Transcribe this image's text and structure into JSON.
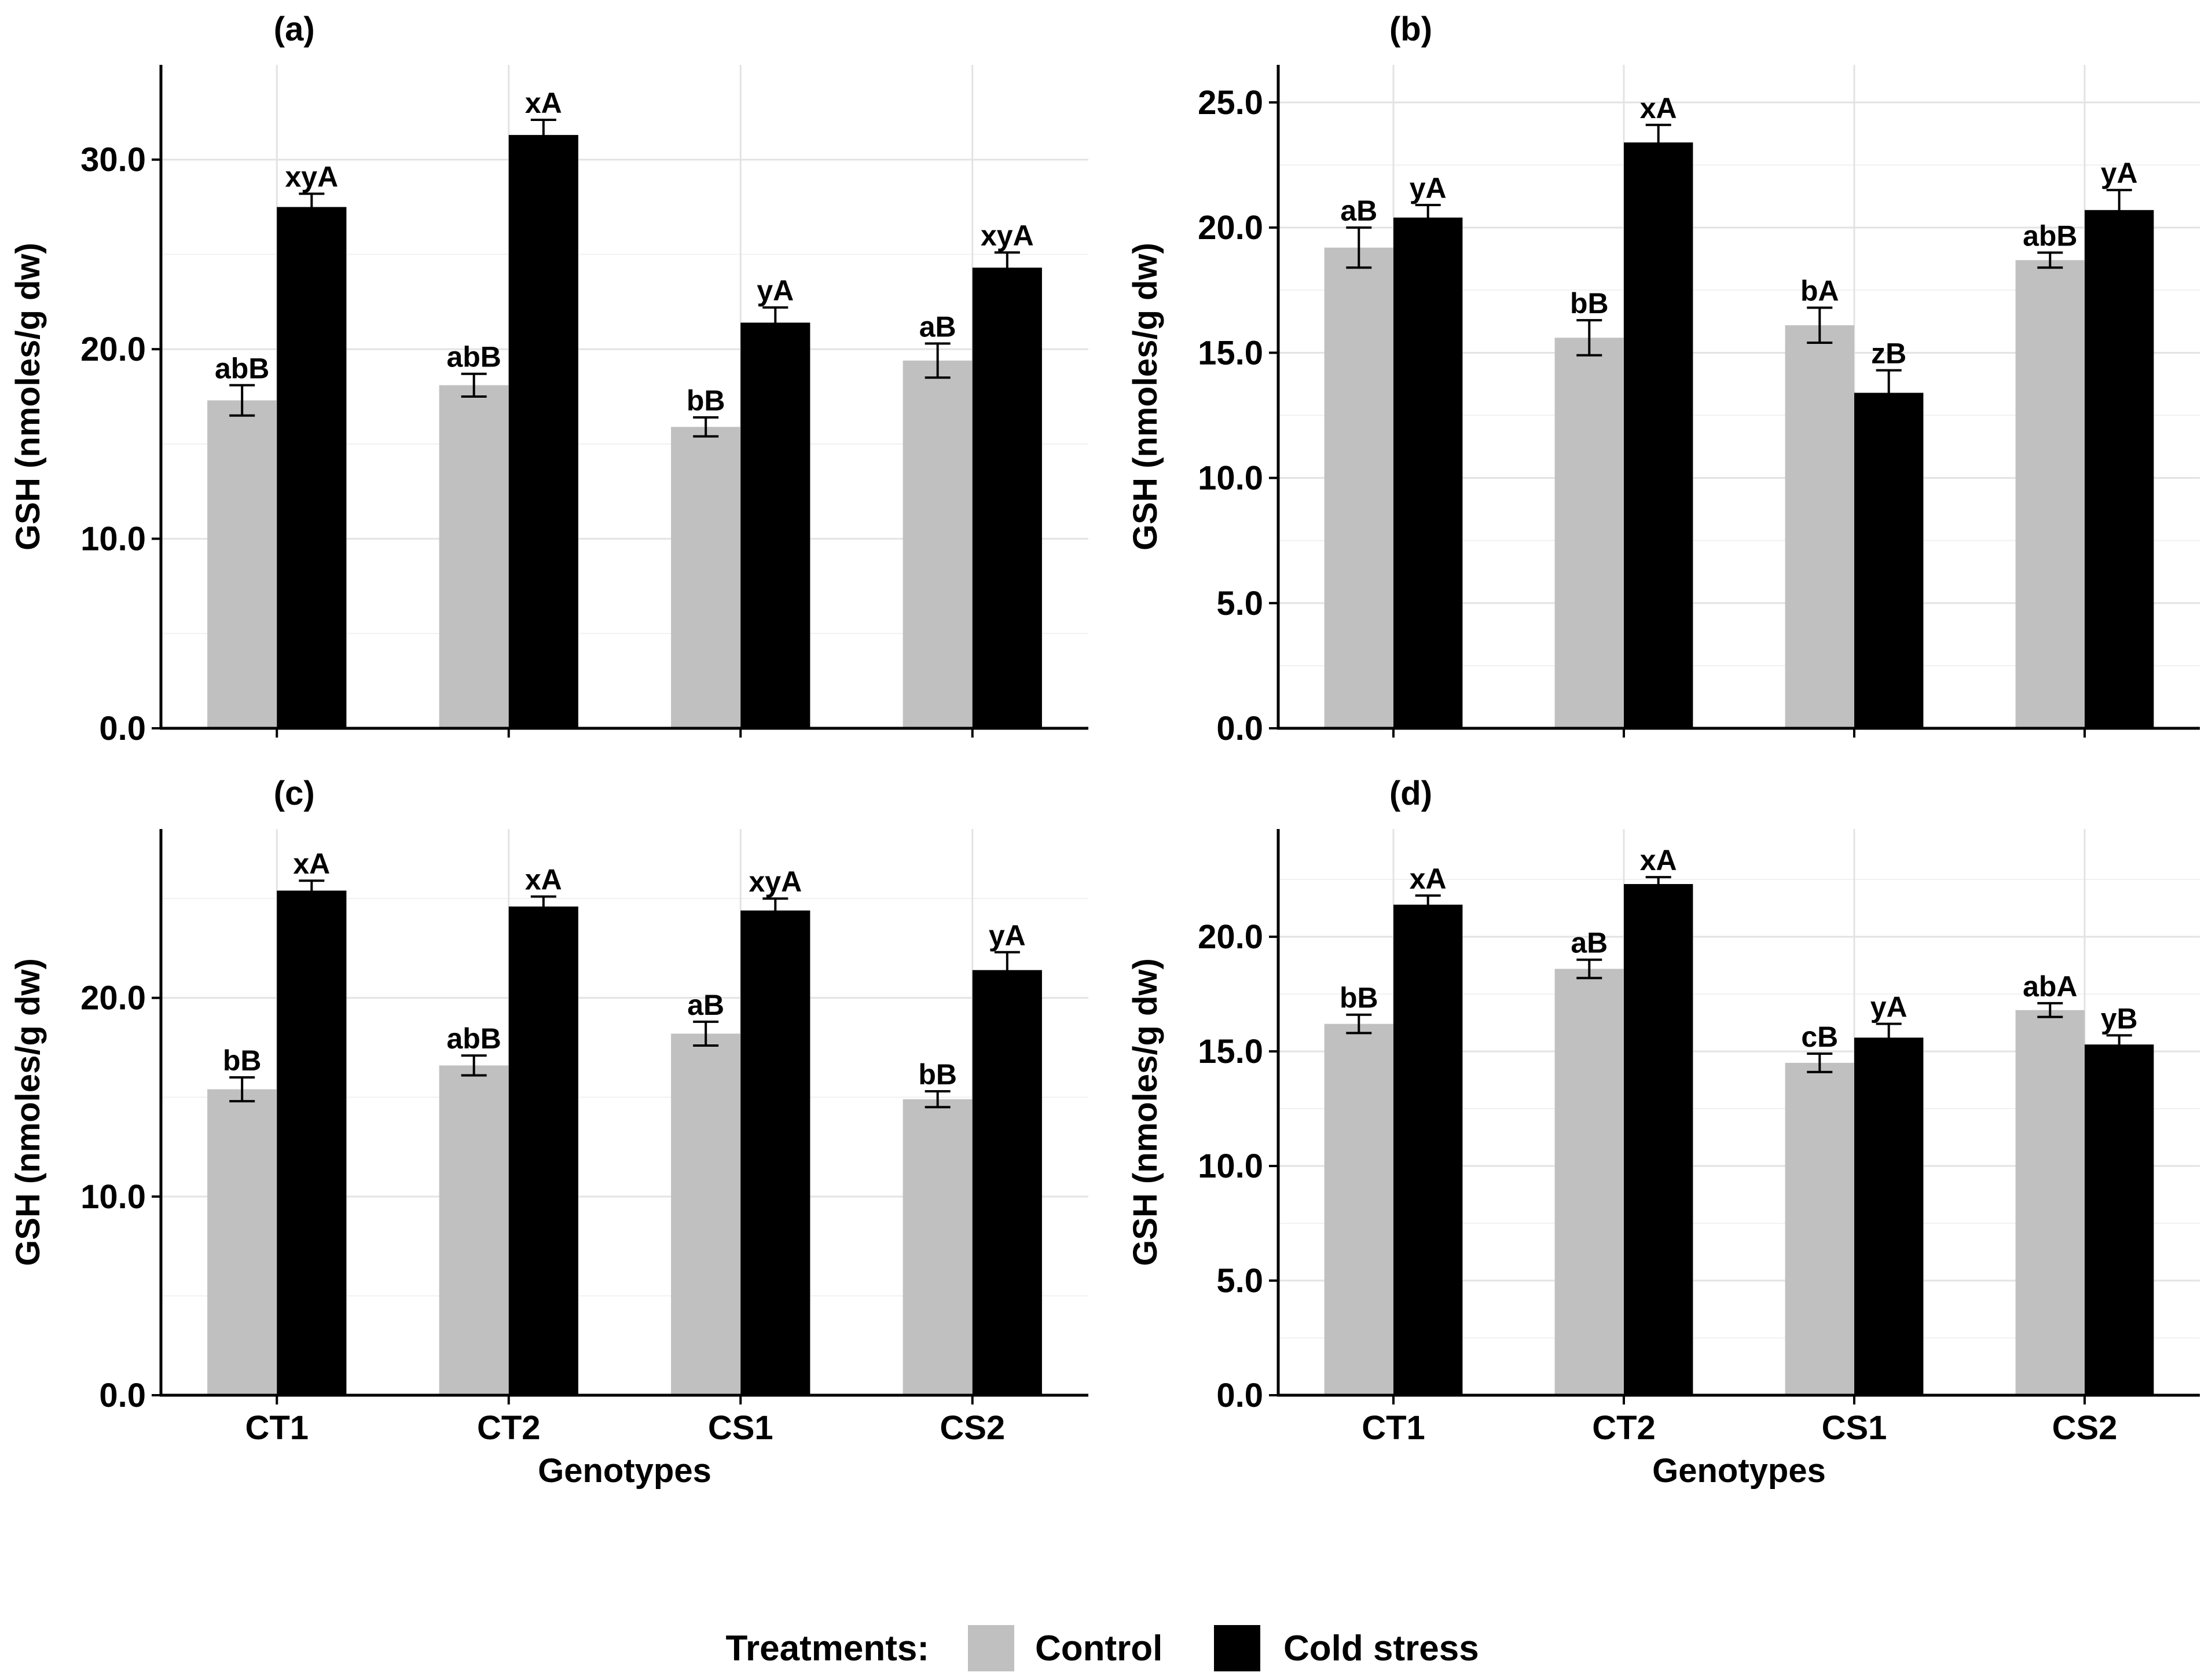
{
  "legend": {
    "title": "Treatments:",
    "items": [
      {
        "label": "Control",
        "color": "#c0c0c0"
      },
      {
        "label": "Cold stress",
        "color": "#000000"
      }
    ]
  },
  "chart_data": [
    {
      "type": "bar",
      "panel_label": "(a)",
      "categories": [
        "CT1",
        "CT2",
        "CS1",
        "CS2"
      ],
      "ylabel": "GSH (nmoles/g dw)",
      "xlabel": "",
      "ylim": [
        0,
        35
      ],
      "yticks": [
        0,
        10,
        20,
        30
      ],
      "ytick_labels": [
        "0.0",
        "10.0",
        "20.0",
        "30.0"
      ],
      "xtick_labels": [],
      "series": [
        {
          "name": "Control",
          "values": [
            17.3,
            18.1,
            15.9,
            19.4
          ],
          "errors": [
            0.8,
            0.6,
            0.5,
            0.9
          ],
          "labels": [
            "abB",
            "abB",
            "bB",
            "aB"
          ]
        },
        {
          "name": "Cold stress",
          "values": [
            27.5,
            31.3,
            21.4,
            24.3
          ],
          "errors": [
            0.7,
            0.8,
            0.8,
            0.8
          ],
          "labels": [
            "xyA",
            "xA",
            "yA",
            "xyA"
          ]
        }
      ]
    },
    {
      "type": "bar",
      "panel_label": "(b)",
      "categories": [
        "CT1",
        "CT2",
        "CS1",
        "CS2"
      ],
      "ylabel": "GSH (nmoles/g dw)",
      "xlabel": "",
      "ylim": [
        0,
        26.5
      ],
      "yticks": [
        0,
        5,
        10,
        15,
        20,
        25
      ],
      "ytick_labels": [
        "0.0",
        "5.0",
        "10.0",
        "15.0",
        "20.0",
        "25.0"
      ],
      "xtick_labels": [],
      "series": [
        {
          "name": "Control",
          "values": [
            19.2,
            15.6,
            16.1,
            18.7
          ],
          "errors": [
            0.8,
            0.7,
            0.7,
            0.3
          ],
          "labels": [
            "aB",
            "bB",
            "bA",
            "abB"
          ]
        },
        {
          "name": "Cold stress",
          "values": [
            20.4,
            23.4,
            13.4,
            20.7
          ],
          "errors": [
            0.5,
            0.7,
            0.9,
            0.8
          ],
          "labels": [
            "yA",
            "xA",
            "zB",
            "yA"
          ]
        }
      ]
    },
    {
      "type": "bar",
      "panel_label": "(c)",
      "categories": [
        "CT1",
        "CT2",
        "CS1",
        "CS2"
      ],
      "ylabel": "GSH (nmoles/g dw)",
      "xlabel": "Genotypes",
      "ylim": [
        0,
        28.5
      ],
      "yticks": [
        0,
        10,
        20
      ],
      "ytick_labels": [
        "0.0",
        "10.0",
        "20.0"
      ],
      "xtick_labels": [
        "CT1",
        "CT2",
        "CS1",
        "CS2"
      ],
      "series": [
        {
          "name": "Control",
          "values": [
            15.4,
            16.6,
            18.2,
            14.9
          ],
          "errors": [
            0.6,
            0.5,
            0.6,
            0.4
          ],
          "labels": [
            "bB",
            "abB",
            "aB",
            "bB"
          ]
        },
        {
          "name": "Cold stress",
          "values": [
            25.4,
            24.6,
            24.4,
            21.4
          ],
          "errors": [
            0.5,
            0.5,
            0.6,
            0.9
          ],
          "labels": [
            "xA",
            "xA",
            "xyA",
            "yA"
          ]
        }
      ]
    },
    {
      "type": "bar",
      "panel_label": "(d)",
      "categories": [
        "CT1",
        "CT2",
        "CS1",
        "CS2"
      ],
      "ylabel": "GSH (nmoles/g dw)",
      "xlabel": "Genotypes",
      "ylim": [
        0,
        24.7
      ],
      "yticks": [
        0,
        5,
        10,
        15,
        20
      ],
      "ytick_labels": [
        "0.0",
        "5.0",
        "10.0",
        "15.0",
        "20.0"
      ],
      "xtick_labels": [
        "CT1",
        "CT2",
        "CS1",
        "CS2"
      ],
      "series": [
        {
          "name": "Control",
          "values": [
            16.2,
            18.6,
            14.5,
            16.8
          ],
          "errors": [
            0.4,
            0.4,
            0.4,
            0.3
          ],
          "labels": [
            "bB",
            "aB",
            "cB",
            "abA"
          ]
        },
        {
          "name": "Cold stress",
          "values": [
            21.4,
            22.3,
            15.6,
            15.3
          ],
          "errors": [
            0.4,
            0.3,
            0.6,
            0.4
          ],
          "labels": [
            "xA",
            "xA",
            "yA",
            "yB"
          ]
        }
      ]
    }
  ]
}
